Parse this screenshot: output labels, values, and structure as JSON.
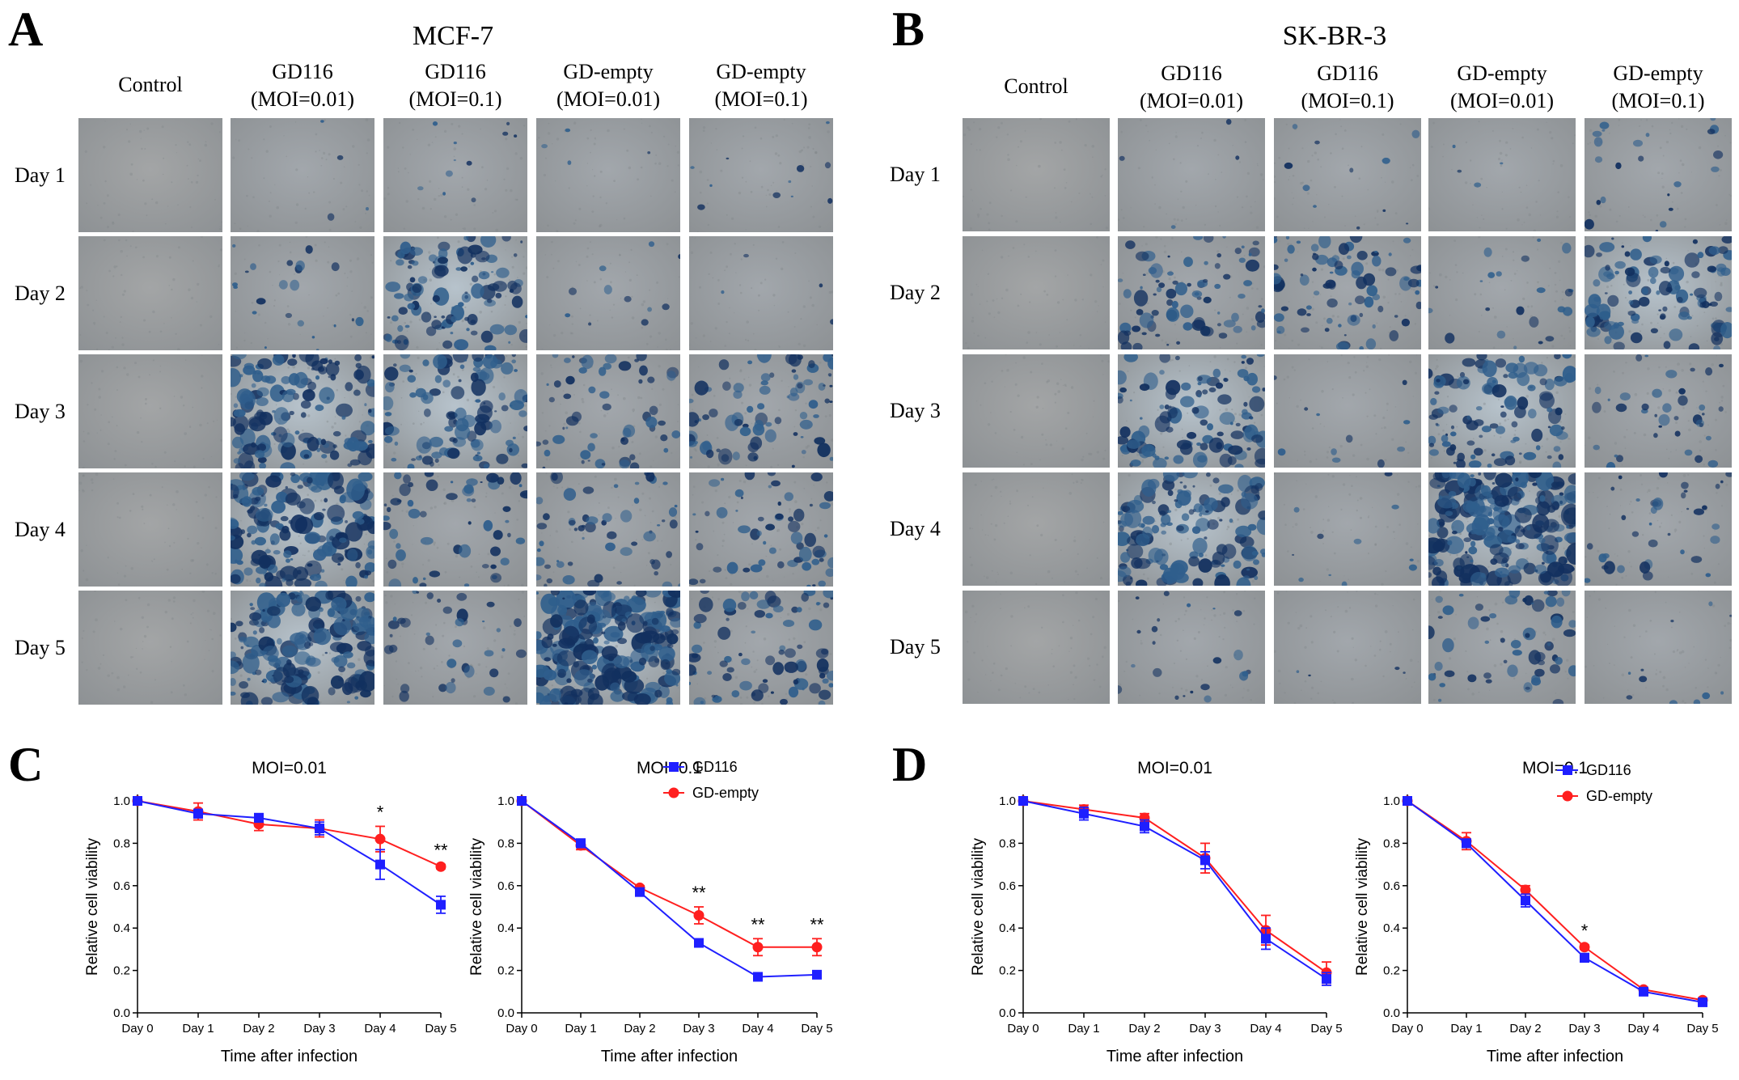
{
  "figure": {
    "panels": [
      {
        "letter": "A",
        "cell_line": "MCF-7",
        "columns": [
          "Control",
          "GD116\n(MOI=0.01)",
          "GD116\n(MOI=0.1)",
          "GD-empty\n(MOI=0.01)",
          "GD-empty\n(MOI=0.1)"
        ],
        "rows": [
          "Day 1",
          "Day 2",
          "Day 3",
          "Day 4",
          "Day 5"
        ],
        "stain_levels": [
          [
            0,
            1,
            2,
            1,
            2
          ],
          [
            0,
            3,
            7,
            2,
            1
          ],
          [
            0,
            8,
            7,
            5,
            6
          ],
          [
            0,
            9,
            5,
            5,
            5
          ],
          [
            0,
            9,
            4,
            10,
            6
          ]
        ]
      },
      {
        "letter": "B",
        "cell_line": "SK-BR-3",
        "columns": [
          "Control",
          "GD116\n(MOI=0.01)",
          "GD116\n(MOI=0.1)",
          "GD-empty\n(MOI=0.01)",
          "GD-empty\n(MOI=0.1)"
        ],
        "rows": [
          "Day 1",
          "Day 2",
          "Day 3",
          "Day 4",
          "Day 5"
        ],
        "stain_levels": [
          [
            0,
            1,
            2,
            1,
            3
          ],
          [
            0,
            6,
            6,
            3,
            7
          ],
          [
            0,
            7,
            2,
            7,
            4
          ],
          [
            0,
            8,
            2,
            10,
            4
          ],
          [
            0,
            3,
            1,
            5,
            2
          ]
        ]
      }
    ],
    "chart_panels": [
      {
        "letter": "C"
      },
      {
        "letter": "D"
      }
    ],
    "colors": {
      "GD116": "#1f1fff",
      "GD-empty": "#ff1f1f",
      "stain": "#1a3a78",
      "well_background": "#9ea0a0"
    }
  },
  "chart_data": [
    {
      "type": "line",
      "panel": "C",
      "title": "MOI=0.01",
      "xlabel": "Time after infection",
      "ylabel": "Relative cell viability",
      "categories": [
        "Day 0",
        "Day 1",
        "Day 2",
        "Day 3",
        "Day 4",
        "Day 5"
      ],
      "yticks": [
        "0.0",
        "0.2",
        "0.4",
        "0.6",
        "0.8",
        "1.0"
      ],
      "ylim": [
        0,
        1.0
      ],
      "series": [
        {
          "name": "GD116",
          "marker": "square",
          "values": [
            1.0,
            0.94,
            0.92,
            0.87,
            0.7,
            0.51
          ],
          "errors": [
            0,
            0.02,
            0.02,
            0.03,
            0.07,
            0.04
          ]
        },
        {
          "name": "GD-empty",
          "marker": "circle",
          "values": [
            1.0,
            0.95,
            0.89,
            0.87,
            0.82,
            0.69
          ],
          "errors": [
            0,
            0.04,
            0.03,
            0.04,
            0.06,
            0.01
          ]
        }
      ],
      "annotations": [
        {
          "x": "Day 4",
          "text": "*"
        },
        {
          "x": "Day 5",
          "text": "**"
        }
      ],
      "legend": false
    },
    {
      "type": "line",
      "panel": "C",
      "title": "MOI=0.1",
      "xlabel": "Time after infection",
      "ylabel": "Relative cell viability",
      "categories": [
        "Day 0",
        "Day 1",
        "Day 2",
        "Day 3",
        "Day 4",
        "Day 5"
      ],
      "yticks": [
        "0.0",
        "0.2",
        "0.4",
        "0.6",
        "0.8",
        "1.0"
      ],
      "ylim": [
        0,
        1.0
      ],
      "series": [
        {
          "name": "GD116",
          "marker": "square",
          "values": [
            1.0,
            0.8,
            0.57,
            0.33,
            0.17,
            0.18
          ],
          "errors": [
            0,
            0.02,
            0.01,
            0.01,
            0.01,
            0.01
          ]
        },
        {
          "name": "GD-empty",
          "marker": "circle",
          "values": [
            1.0,
            0.79,
            0.59,
            0.46,
            0.31,
            0.31
          ],
          "errors": [
            0,
            0.02,
            0.01,
            0.04,
            0.04,
            0.04
          ]
        }
      ],
      "annotations": [
        {
          "x": "Day 3",
          "text": "**"
        },
        {
          "x": "Day 4",
          "text": "**"
        },
        {
          "x": "Day 5",
          "text": "**"
        }
      ],
      "legend": true
    },
    {
      "type": "line",
      "panel": "D",
      "title": "MOI=0.01",
      "xlabel": "Time after infection",
      "ylabel": "Relative cell viability",
      "categories": [
        "Day 0",
        "Day 1",
        "Day 2",
        "Day 3",
        "Day 4",
        "Day 5"
      ],
      "yticks": [
        "0.0",
        "0.2",
        "0.4",
        "0.6",
        "0.8",
        "1.0"
      ],
      "ylim": [
        0,
        1.0
      ],
      "series": [
        {
          "name": "GD116",
          "marker": "square",
          "values": [
            1.0,
            0.94,
            0.88,
            0.72,
            0.35,
            0.16
          ],
          "errors": [
            0,
            0.03,
            0.03,
            0.04,
            0.05,
            0.03
          ]
        },
        {
          "name": "GD-empty",
          "marker": "circle",
          "values": [
            1.0,
            0.96,
            0.92,
            0.73,
            0.39,
            0.19
          ],
          "errors": [
            0,
            0.02,
            0.02,
            0.07,
            0.07,
            0.05
          ]
        }
      ],
      "annotations": [],
      "legend": false
    },
    {
      "type": "line",
      "panel": "D",
      "title": "MOI=0.1",
      "xlabel": "Time after infection",
      "ylabel": "Relative cell viability",
      "categories": [
        "Day 0",
        "Day 1",
        "Day 2",
        "Day 3",
        "Day 4",
        "Day 5"
      ],
      "yticks": [
        "0.0",
        "0.2",
        "0.4",
        "0.6",
        "0.8",
        "1.0"
      ],
      "ylim": [
        0,
        1.0
      ],
      "series": [
        {
          "name": "GD116",
          "marker": "square",
          "values": [
            1.0,
            0.8,
            0.53,
            0.26,
            0.1,
            0.05
          ],
          "errors": [
            0,
            0.02,
            0.03,
            0.02,
            0.01,
            0.01
          ]
        },
        {
          "name": "GD-empty",
          "marker": "circle",
          "values": [
            1.0,
            0.81,
            0.58,
            0.31,
            0.11,
            0.06
          ],
          "errors": [
            0,
            0.04,
            0.02,
            0.01,
            0.01,
            0.01
          ]
        }
      ],
      "annotations": [
        {
          "x": "Day 3",
          "text": "*"
        }
      ],
      "legend": true
    }
  ]
}
